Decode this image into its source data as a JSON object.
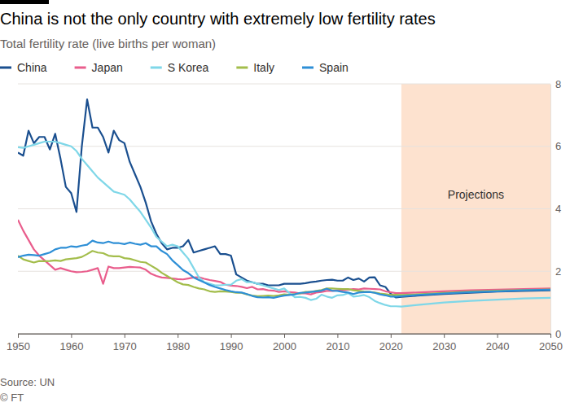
{
  "chart_data": {
    "type": "line",
    "title": "China is not the only country with extremely low fertility rates",
    "subtitle": "Total fertility rate (live births per woman)",
    "source": "Source: UN",
    "credit": "© FT",
    "x": [
      1950,
      1951,
      1952,
      1953,
      1954,
      1955,
      1956,
      1957,
      1958,
      1959,
      1960,
      1961,
      1962,
      1963,
      1964,
      1965,
      1966,
      1967,
      1968,
      1969,
      1970,
      1971,
      1972,
      1973,
      1974,
      1975,
      1976,
      1977,
      1978,
      1979,
      1980,
      1981,
      1982,
      1983,
      1984,
      1985,
      1986,
      1987,
      1988,
      1989,
      1990,
      1991,
      1992,
      1993,
      1994,
      1995,
      1996,
      1997,
      1998,
      1999,
      2000,
      2001,
      2002,
      2003,
      2004,
      2005,
      2006,
      2007,
      2008,
      2009,
      2010,
      2011,
      2012,
      2013,
      2014,
      2015,
      2016,
      2017,
      2018,
      2019,
      2020,
      2021,
      2022,
      2025,
      2030,
      2035,
      2040,
      2045,
      2050
    ],
    "xlim": [
      1950,
      2050
    ],
    "xticks": [
      1950,
      1960,
      1970,
      1980,
      1990,
      2000,
      2010,
      2020,
      2030,
      2040,
      2050
    ],
    "ylim": [
      0,
      8
    ],
    "yticks": [
      0,
      2,
      4,
      6,
      8
    ],
    "grid": true,
    "shaded_region": {
      "label": "Projections",
      "x": [
        2022,
        2050
      ]
    },
    "series": [
      {
        "name": "China",
        "color": "#1a4f8f",
        "values": [
          5.8,
          5.7,
          6.5,
          6.1,
          6.3,
          6.3,
          5.9,
          6.4,
          5.6,
          4.7,
          4.5,
          3.9,
          6.0,
          7.5,
          6.6,
          6.6,
          6.3,
          5.8,
          6.5,
          6.2,
          6.1,
          5.5,
          5.1,
          4.7,
          4.2,
          3.6,
          3.2,
          2.9,
          2.7,
          2.75,
          2.75,
          2.8,
          3.0,
          2.6,
          2.65,
          2.7,
          2.75,
          2.8,
          2.55,
          2.55,
          2.5,
          1.9,
          1.8,
          1.7,
          1.65,
          1.6,
          1.6,
          1.55,
          1.55,
          1.55,
          1.6,
          1.6,
          1.6,
          1.6,
          1.62,
          1.65,
          1.67,
          1.7,
          1.72,
          1.73,
          1.7,
          1.7,
          1.8,
          1.72,
          1.77,
          1.67,
          1.8,
          1.81,
          1.55,
          1.5,
          1.28,
          1.16,
          1.18,
          1.22,
          1.27,
          1.31,
          1.35,
          1.37,
          1.39
        ]
      },
      {
        "name": "Japan",
        "color": "#e95d8c",
        "values": [
          3.65,
          3.3,
          3.0,
          2.7,
          2.5,
          2.35,
          2.2,
          2.05,
          2.1,
          2.05,
          2.0,
          1.97,
          1.98,
          2.0,
          2.05,
          2.1,
          1.6,
          2.15,
          2.1,
          2.1,
          2.12,
          2.14,
          2.13,
          2.12,
          2.05,
          1.92,
          1.85,
          1.8,
          1.79,
          1.77,
          1.75,
          1.74,
          1.77,
          1.8,
          1.81,
          1.76,
          1.72,
          1.69,
          1.66,
          1.57,
          1.54,
          1.53,
          1.5,
          1.46,
          1.5,
          1.42,
          1.43,
          1.39,
          1.38,
          1.34,
          1.36,
          1.33,
          1.32,
          1.29,
          1.29,
          1.26,
          1.32,
          1.34,
          1.37,
          1.37,
          1.39,
          1.39,
          1.41,
          1.43,
          1.42,
          1.45,
          1.44,
          1.43,
          1.42,
          1.36,
          1.33,
          1.3,
          1.3,
          1.32,
          1.36,
          1.39,
          1.41,
          1.43,
          1.45
        ]
      },
      {
        "name": "S Korea",
        "color": "#7fd7e8",
        "values": [
          5.97,
          5.95,
          6.0,
          6.05,
          6.1,
          6.15,
          6.15,
          6.15,
          6.1,
          6.05,
          6.0,
          5.85,
          5.6,
          5.4,
          5.2,
          5.0,
          4.85,
          4.7,
          4.55,
          4.5,
          4.45,
          4.3,
          4.1,
          3.9,
          3.65,
          3.4,
          3.1,
          2.95,
          2.8,
          2.85,
          2.8,
          2.6,
          2.4,
          2.1,
          1.8,
          1.65,
          1.6,
          1.55,
          1.55,
          1.57,
          1.57,
          1.7,
          1.75,
          1.65,
          1.65,
          1.6,
          1.55,
          1.5,
          1.45,
          1.4,
          1.45,
          1.3,
          1.17,
          1.18,
          1.15,
          1.08,
          1.12,
          1.25,
          1.19,
          1.15,
          1.23,
          1.24,
          1.3,
          1.19,
          1.21,
          1.24,
          1.17,
          1.05,
          0.98,
          0.92,
          0.88,
          0.88,
          0.87,
          0.92,
          1.0,
          1.05,
          1.09,
          1.13,
          1.15
        ]
      },
      {
        "name": "Italy",
        "color": "#a3bd4b",
        "values": [
          2.5,
          2.38,
          2.33,
          2.28,
          2.33,
          2.32,
          2.33,
          2.35,
          2.33,
          2.38,
          2.4,
          2.42,
          2.46,
          2.55,
          2.65,
          2.6,
          2.58,
          2.5,
          2.48,
          2.48,
          2.42,
          2.4,
          2.35,
          2.3,
          2.28,
          2.18,
          2.08,
          1.95,
          1.85,
          1.75,
          1.65,
          1.58,
          1.56,
          1.5,
          1.45,
          1.42,
          1.36,
          1.34,
          1.36,
          1.35,
          1.34,
          1.31,
          1.31,
          1.26,
          1.22,
          1.2,
          1.21,
          1.22,
          1.21,
          1.23,
          1.26,
          1.25,
          1.27,
          1.29,
          1.34,
          1.34,
          1.37,
          1.4,
          1.45,
          1.45,
          1.44,
          1.43,
          1.43,
          1.39,
          1.37,
          1.35,
          1.34,
          1.32,
          1.29,
          1.27,
          1.24,
          1.25,
          1.24,
          1.26,
          1.31,
          1.35,
          1.38,
          1.4,
          1.42
        ]
      },
      {
        "name": "Spain",
        "color": "#2e8fd6",
        "values": [
          2.45,
          2.5,
          2.53,
          2.52,
          2.5,
          2.55,
          2.6,
          2.7,
          2.75,
          2.75,
          2.8,
          2.78,
          2.82,
          2.85,
          2.98,
          2.92,
          2.9,
          2.95,
          2.9,
          2.9,
          2.87,
          2.92,
          2.88,
          2.85,
          2.9,
          2.8,
          2.8,
          2.65,
          2.55,
          2.35,
          2.2,
          2.04,
          1.94,
          1.8,
          1.72,
          1.64,
          1.56,
          1.5,
          1.45,
          1.4,
          1.36,
          1.33,
          1.32,
          1.27,
          1.21,
          1.17,
          1.16,
          1.17,
          1.15,
          1.19,
          1.22,
          1.24,
          1.26,
          1.31,
          1.32,
          1.34,
          1.36,
          1.38,
          1.44,
          1.38,
          1.37,
          1.34,
          1.32,
          1.27,
          1.32,
          1.33,
          1.34,
          1.31,
          1.26,
          1.23,
          1.19,
          1.19,
          1.2,
          1.24,
          1.29,
          1.33,
          1.36,
          1.39,
          1.41
        ]
      }
    ]
  }
}
